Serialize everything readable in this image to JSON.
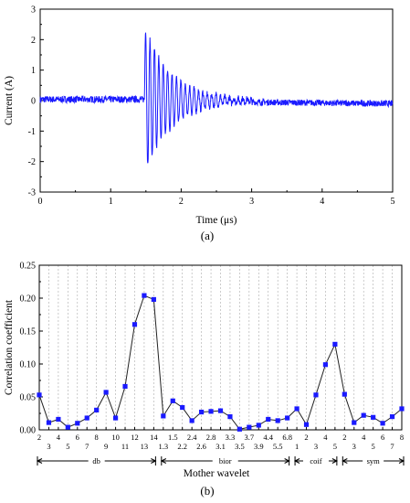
{
  "chart_data": [
    {
      "type": "line",
      "panel_label": "(a)",
      "title": "",
      "xlabel": "Time (μs)",
      "ylabel": "Current (A)",
      "xlim": [
        0,
        5
      ],
      "ylim": [
        -3,
        3
      ],
      "xticks": [
        0,
        1,
        2,
        3,
        4,
        5
      ],
      "yticks": [
        -3,
        -2,
        -1,
        0,
        1,
        2,
        3
      ],
      "grid": false,
      "color": "#1a1aff",
      "series": [
        {
          "x": [
            0,
            0.5,
            1.0,
            1.45,
            1.5,
            1.52,
            1.55,
            1.58,
            1.6,
            1.63,
            1.66,
            1.7,
            1.75,
            1.8,
            1.85,
            1.9,
            1.95,
            2.0,
            2.1,
            2.2,
            2.3,
            2.4,
            2.5,
            2.6,
            2.8,
            3.0,
            3.5,
            4.0,
            4.5,
            5.0
          ],
          "y": [
            0.05,
            0.0,
            0.05,
            0.05,
            -2.1,
            1.7,
            -2.15,
            2.3,
            -1.6,
            2.1,
            -1.5,
            1.4,
            -1.2,
            1.2,
            -0.9,
            0.9,
            -0.7,
            0.6,
            -0.4,
            0.4,
            -0.3,
            0.2,
            -0.25,
            0.1,
            -0.1,
            0.05,
            -0.05,
            0.0,
            -0.05,
            -0.1
          ]
        }
      ]
    },
    {
      "type": "line",
      "panel_label": "(b)",
      "title": "",
      "xlabel": "Mother wavelet",
      "ylabel": "Correlation coefficient",
      "ylim": [
        0,
        0.25
      ],
      "yticks": [
        "0.00",
        "0.05",
        "0.10",
        "0.15",
        "0.20",
        "0.25"
      ],
      "grid": "dashed-vertical",
      "color": "#1a1aff",
      "categories": [
        "2",
        "3",
        "4",
        "5",
        "6",
        "7",
        "8",
        "9",
        "10",
        "11",
        "12",
        "13",
        "14",
        "1.3",
        "1.5",
        "2.2",
        "2.4",
        "2.6",
        "2.8",
        "3.1",
        "3.3",
        "3.5",
        "3.7",
        "3.9",
        "4.4",
        "5.5",
        "6.8",
        "1",
        "2",
        "3",
        "4",
        "5",
        "2",
        "3",
        "4",
        "5",
        "6",
        "7",
        "8"
      ],
      "values": [
        0.053,
        0.011,
        0.016,
        0.004,
        0.01,
        0.018,
        0.03,
        0.057,
        0.018,
        0.066,
        0.16,
        0.204,
        0.198,
        0.021,
        0.044,
        0.034,
        0.014,
        0.027,
        0.028,
        0.029,
        0.02,
        0.001,
        0.004,
        0.007,
        0.016,
        0.014,
        0.018,
        0.032,
        0.008,
        0.053,
        0.099,
        0.13,
        0.054,
        0.011,
        0.022,
        0.019,
        0.01,
        0.02,
        0.032
      ],
      "groups": [
        {
          "name": "db",
          "start": 0,
          "end": 12
        },
        {
          "name": "bior",
          "start": 13,
          "end": 26
        },
        {
          "name": "coif",
          "start": 27,
          "end": 31
        },
        {
          "name": "sym",
          "start": 32,
          "end": 38
        }
      ]
    }
  ]
}
